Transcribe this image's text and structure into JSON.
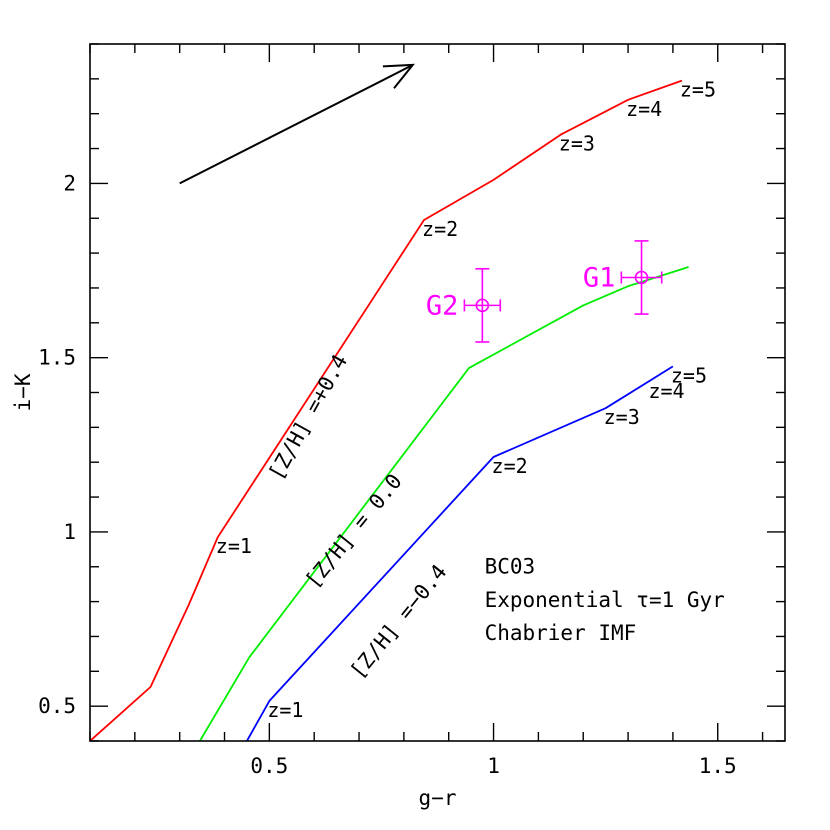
{
  "chart_data": {
    "type": "line",
    "title": "",
    "xlabel": "g−r",
    "ylabel": "i−K",
    "xlim": [
      0.1,
      1.65
    ],
    "ylim": [
      0.4,
      2.4
    ],
    "x_ticks": [
      {
        "value": 0.5,
        "label": "0.5"
      },
      {
        "value": 1,
        "label": "1"
      },
      {
        "value": 1.5,
        "label": "1.5"
      }
    ],
    "y_ticks": [
      {
        "value": 0.5,
        "label": "0.5"
      },
      {
        "value": 1,
        "label": "1"
      },
      {
        "value": 1.5,
        "label": "1.5"
      },
      {
        "value": 2,
        "label": "2"
      }
    ],
    "x_minor_step": 0.1,
    "y_minor_step": 0.1,
    "grid": false,
    "series": [
      {
        "name": "[Z/H] =+0.4",
        "color": "#ff0000",
        "points": [
          [
            0.1,
            0.4
          ],
          [
            0.235,
            0.555
          ],
          [
            0.32,
            0.79
          ],
          [
            0.385,
            0.985
          ],
          [
            0.845,
            1.895
          ],
          [
            1.0,
            2.01
          ],
          [
            1.15,
            2.14
          ],
          [
            1.3,
            2.24
          ],
          [
            1.42,
            2.295
          ]
        ],
        "label_angle": -61
      },
      {
        "name": "[Z/H] = 0.0",
        "color": "#00ee00",
        "points": [
          [
            0.345,
            0.4
          ],
          [
            0.455,
            0.64
          ],
          [
            0.945,
            1.47
          ],
          [
            1.2,
            1.65
          ],
          [
            1.3,
            1.705
          ],
          [
            1.435,
            1.76
          ]
        ],
        "label_angle": -51
      },
      {
        "name": "[Z/H] =−0.4",
        "color": "#0000ff",
        "points": [
          [
            0.45,
            0.4
          ],
          [
            0.5,
            0.515
          ],
          [
            1.0,
            1.215
          ],
          [
            1.25,
            1.355
          ],
          [
            1.4,
            1.475
          ]
        ],
        "label_angle": -51
      }
    ],
    "redshift_labels": [
      {
        "text": "z=1",
        "x": 0.385,
        "y": 0.985,
        "series": 0
      },
      {
        "text": "z=2",
        "x": 0.845,
        "y": 1.895,
        "series": 0
      },
      {
        "text": "z=3",
        "x": 1.15,
        "y": 2.14,
        "series": 0
      },
      {
        "text": "z=4",
        "x": 1.3,
        "y": 2.24,
        "series": 0
      },
      {
        "text": "z=5",
        "x": 1.42,
        "y": 2.295,
        "series": 0
      },
      {
        "text": "z=1",
        "x": 0.5,
        "y": 0.515,
        "series": 2
      },
      {
        "text": "z=2",
        "x": 1.0,
        "y": 1.215,
        "series": 2
      },
      {
        "text": "z=3",
        "x": 1.25,
        "y": 1.355,
        "series": 2
      },
      {
        "text": "z=4",
        "x": 1.35,
        "y": 1.43,
        "series": 2
      },
      {
        "text": "z=5",
        "x": 1.4,
        "y": 1.475,
        "series": 2
      }
    ],
    "points": [
      {
        "name": "G1",
        "x": 1.33,
        "y": 1.73,
        "xerr": 0.045,
        "yerr": 0.105,
        "color": "#ff00ff"
      },
      {
        "name": "G2",
        "x": 0.975,
        "y": 1.65,
        "xerr": 0.04,
        "yerr": 0.105,
        "color": "#ff00ff"
      }
    ],
    "arrow": {
      "from": [
        0.3,
        2.0
      ],
      "to": [
        0.82,
        2.34
      ],
      "color": "#000000"
    },
    "annotations": [
      {
        "text": "BC03",
        "x": 0.98,
        "y": 0.88
      },
      {
        "text": "Exponential τ=1 Gyr",
        "x": 0.98,
        "y": 0.785
      },
      {
        "text": "Chabrier IMF",
        "x": 0.98,
        "y": 0.69
      }
    ]
  }
}
